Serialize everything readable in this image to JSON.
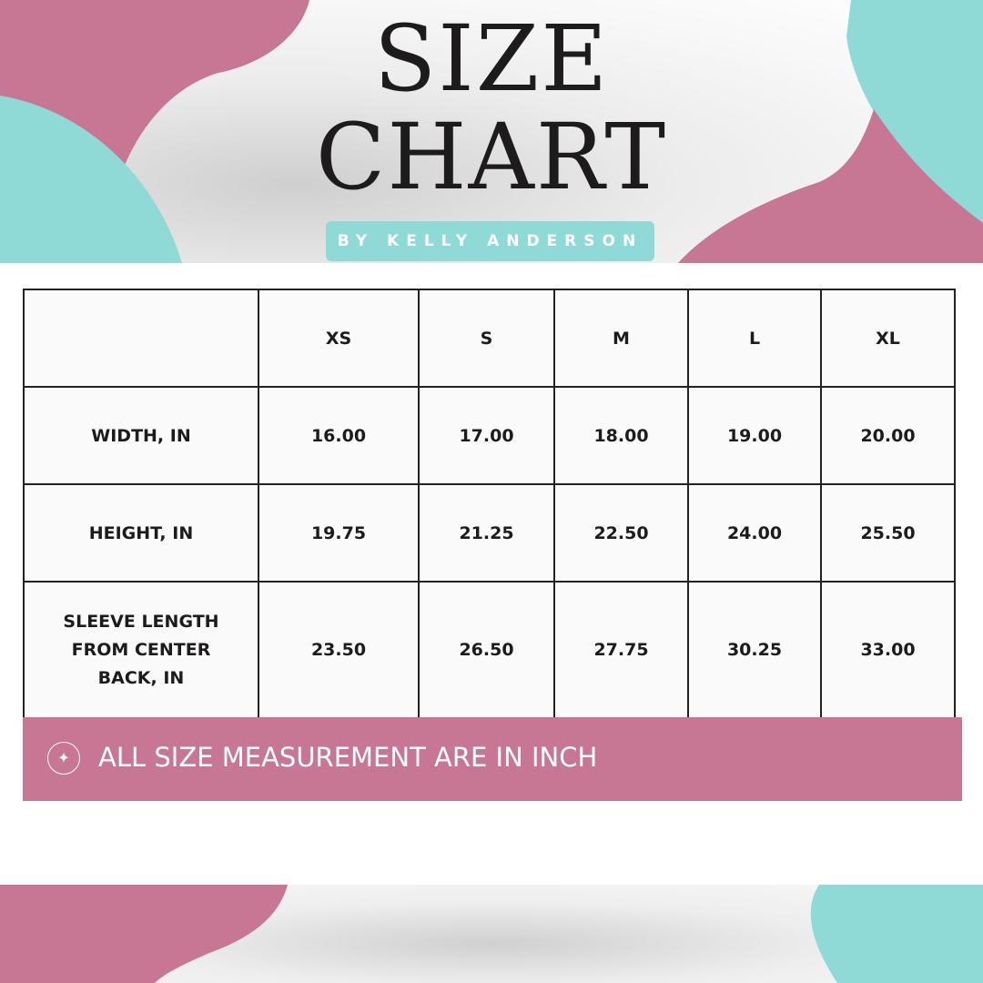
{
  "header": {
    "title_line1": "SIZE",
    "title_line2": "CHART",
    "byline": "BY KELLY ANDERSON"
  },
  "colors": {
    "pink": "#c77694",
    "teal": "#8fdad6",
    "text": "#1d1b1b"
  },
  "table": {
    "columns": [
      "",
      "XS",
      "S",
      "M",
      "L",
      "XL"
    ],
    "rows": [
      {
        "label": "WIDTH, IN",
        "values": [
          "16.00",
          "17.00",
          "18.00",
          "19.00",
          "20.00"
        ]
      },
      {
        "label": "HEIGHT, IN",
        "values": [
          "19.75",
          "21.25",
          "22.50",
          "24.00",
          "25.50"
        ]
      },
      {
        "label": "SLEEVE LENGTH FROM CENTER BACK, IN",
        "values": [
          "23.50",
          "26.50",
          "27.75",
          "30.25",
          "33.00"
        ]
      }
    ]
  },
  "note": {
    "icon": "sparkle-icon",
    "text": "ALL SIZE MEASUREMENT ARE IN INCH"
  }
}
